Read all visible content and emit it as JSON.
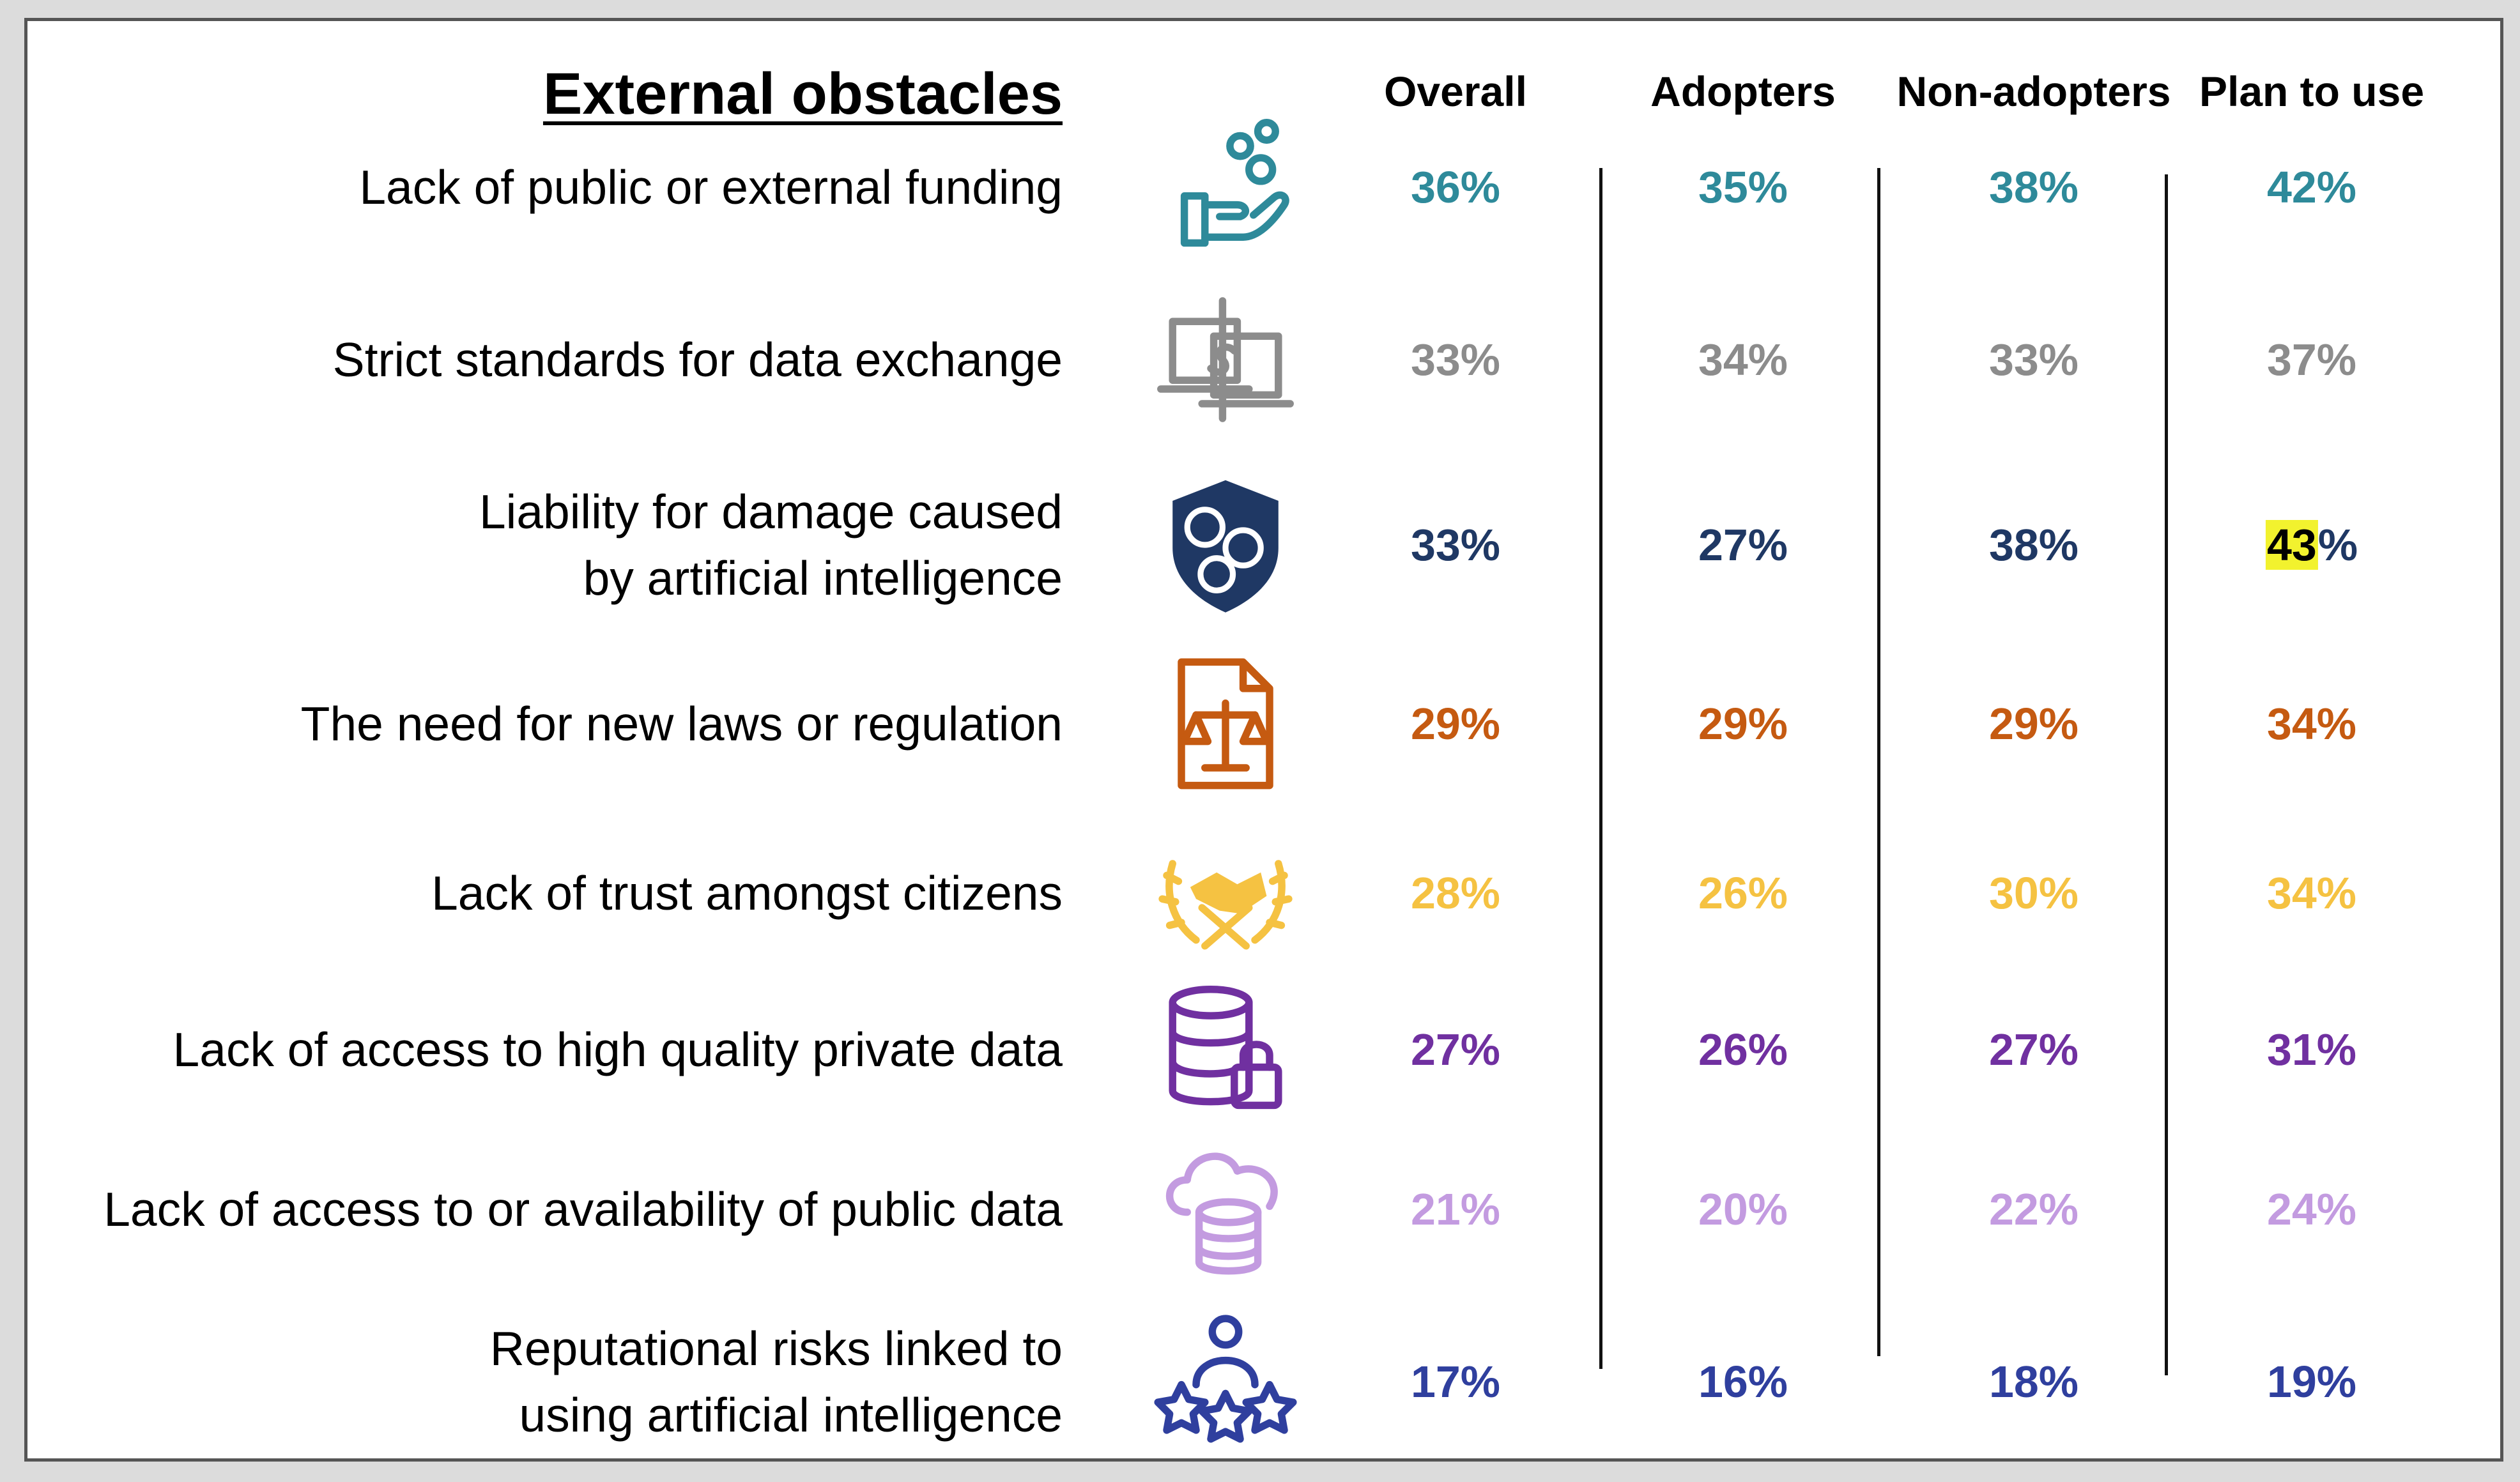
{
  "chart_data": {
    "type": "table",
    "title": "External obstacles",
    "columns": [
      "Overall",
      "Adopters",
      "Non-adopters",
      "Plan to use"
    ],
    "rows": [
      {
        "label": [
          "Lack of public or external funding"
        ],
        "icon": "funding-hand-coins-icon",
        "color": "#2e8a9a",
        "values": [
          "36%",
          "35%",
          "38%",
          "42%"
        ]
      },
      {
        "label": [
          "Strict standards for data exchange"
        ],
        "icon": "data-exchange-laptops-icon",
        "color": "#8c8c8c",
        "values": [
          "33%",
          "34%",
          "33%",
          "37%"
        ]
      },
      {
        "label": [
          "Liability for damage caused",
          "by artificial intelligence"
        ],
        "icon": "liability-shield-coins-icon",
        "color": "#1f3864",
        "values": [
          "33%",
          "27%",
          "38%",
          "43%"
        ],
        "highlight_digits": "43"
      },
      {
        "label": [
          "The need for new laws or regulation"
        ],
        "icon": "law-document-scales-icon",
        "color": "#c55a11",
        "values": [
          "29%",
          "29%",
          "29%",
          "34%"
        ]
      },
      {
        "label": [
          "Lack of trust amongst citizens"
        ],
        "icon": "trust-handshake-laurel-icon",
        "color": "#f5c242",
        "values": [
          "28%",
          "26%",
          "30%",
          "34%"
        ]
      },
      {
        "label": [
          "Lack of access to high quality private data"
        ],
        "icon": "database-lock-icon",
        "color": "#7030a0",
        "values": [
          "27%",
          "26%",
          "27%",
          "31%"
        ]
      },
      {
        "label": [
          "Lack of access to or availability of public data"
        ],
        "icon": "cloud-database-icon",
        "color": "#c39be0",
        "values": [
          "21%",
          "20%",
          "22%",
          "24%"
        ]
      },
      {
        "label": [
          "Reputational risks linked to",
          "using artificial intelligence"
        ],
        "icon": "person-stars-icon",
        "color": "#2f3f9e",
        "values": [
          "17%",
          "16%",
          "18%",
          "19%"
        ]
      }
    ]
  }
}
